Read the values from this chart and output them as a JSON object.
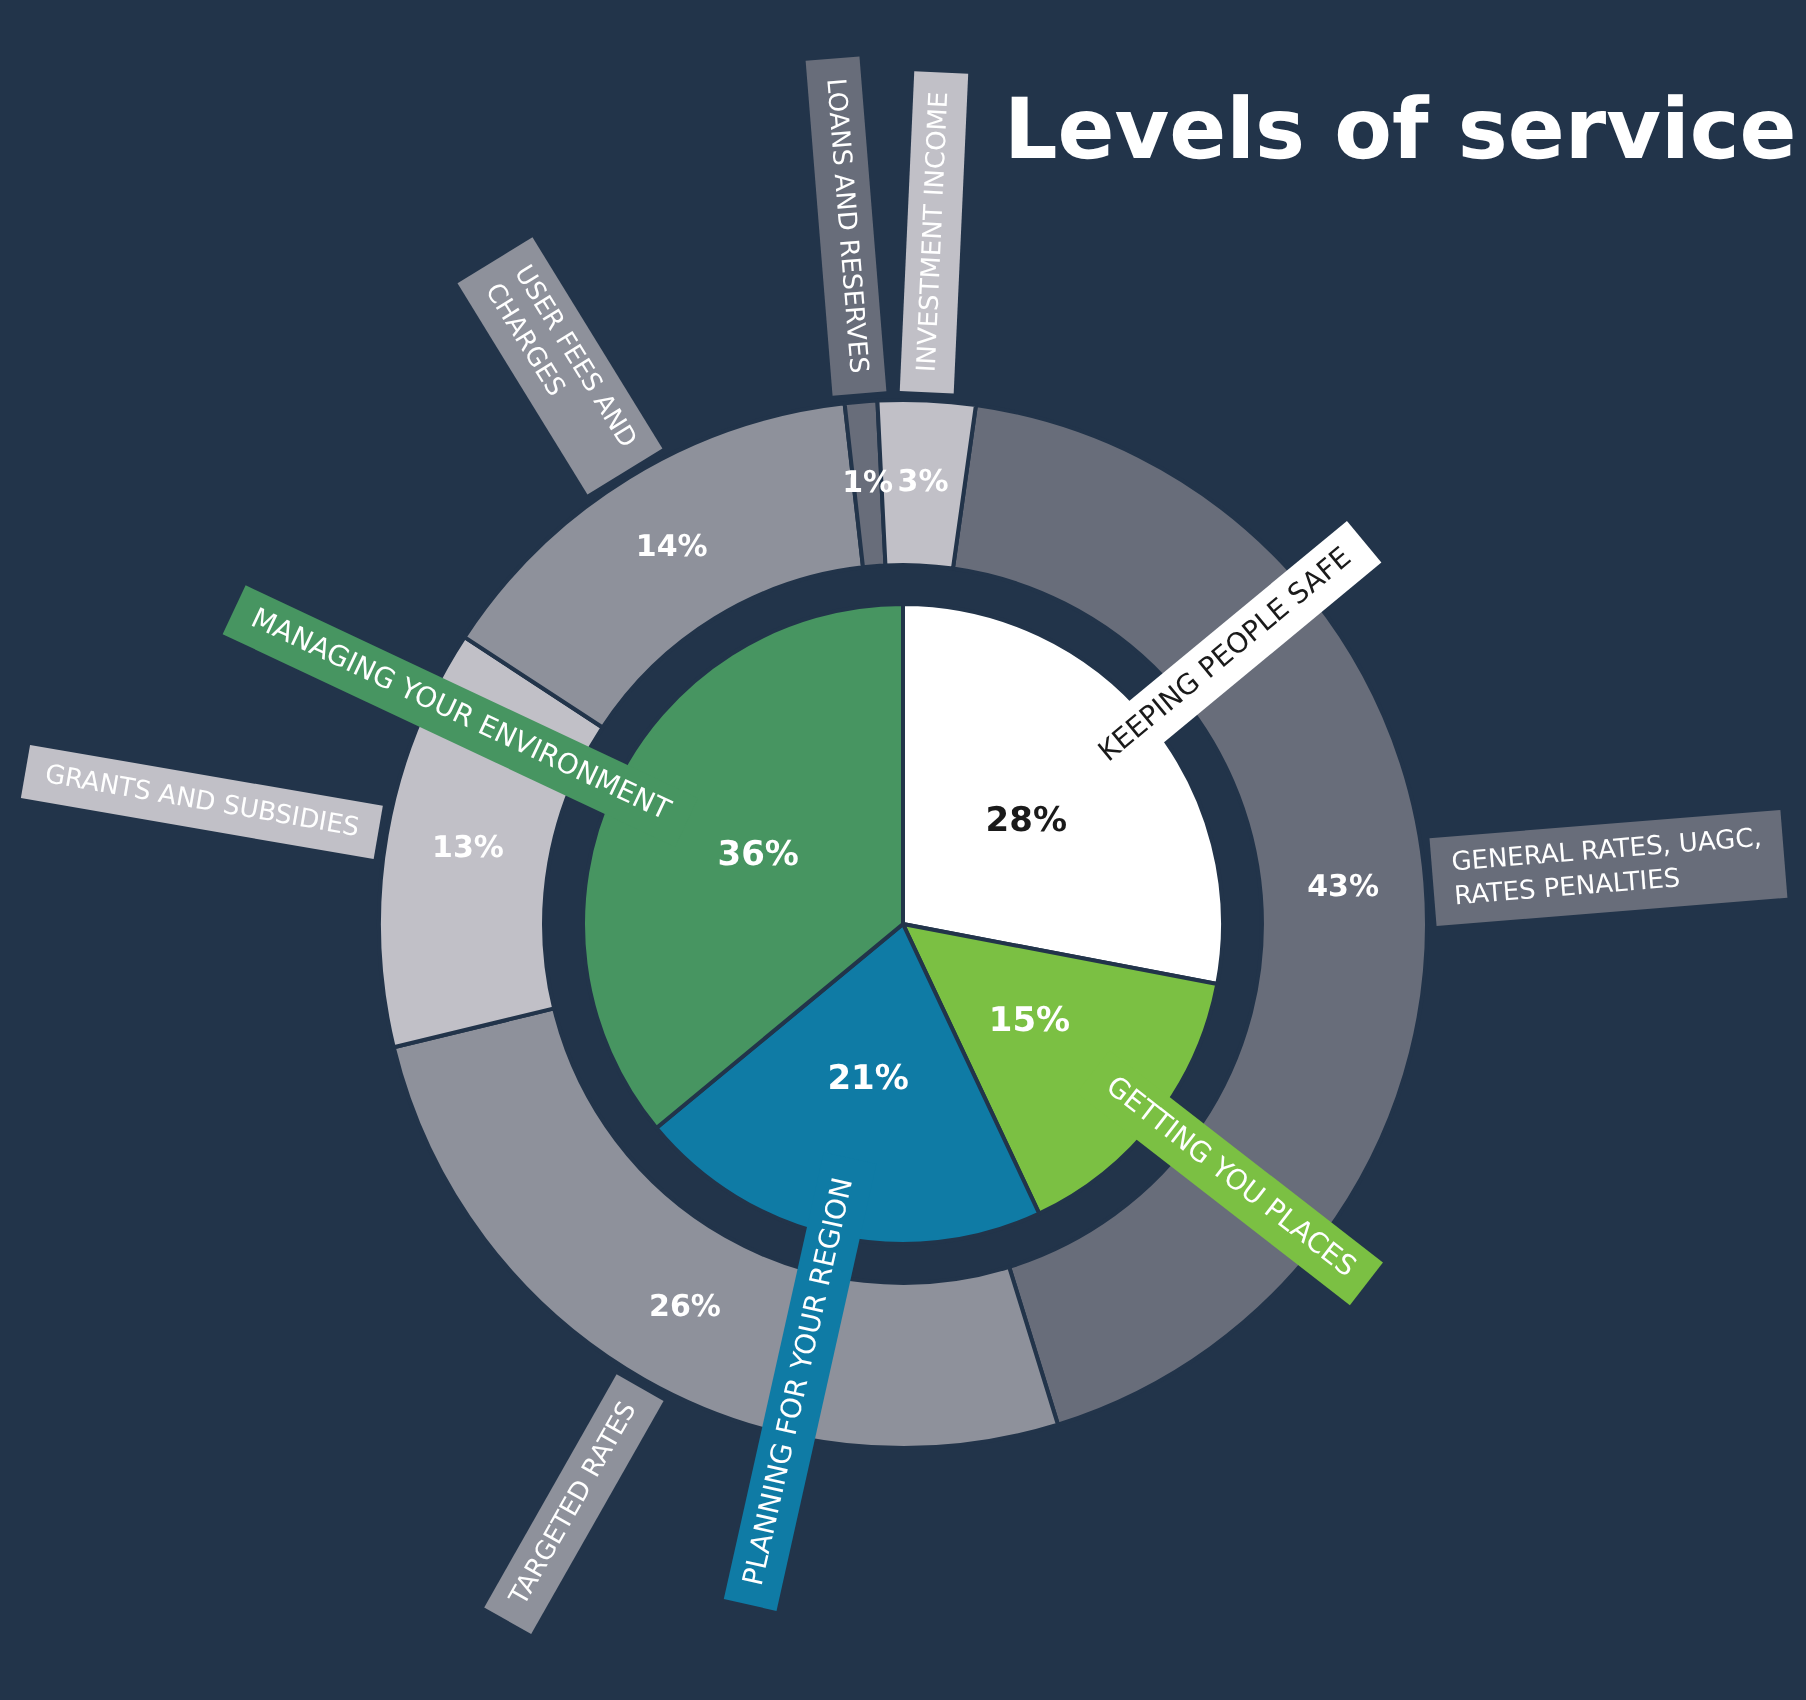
{
  "chart_data": [
    {
      "type": "pie",
      "title": "Levels of service",
      "categories": [
        "KEEPING PEOPLE SAFE",
        "GETTING YOU PLACES",
        "PLANNING FOR YOUR REGION",
        "MANAGING YOUR ENVIRONMENT"
      ],
      "values": [
        28,
        15,
        21,
        36
      ],
      "colors": [
        "#ffffff",
        "#7bc043",
        "#0f7ba5",
        "#479561"
      ],
      "value_labels": [
        "28%",
        "15%",
        "21%",
        "36%"
      ]
    },
    {
      "type": "donut",
      "categories": [
        "GENERAL RATES, UAGC, RATES PENALTIES",
        "TARGETED RATES",
        "GRANTS AND SUBSIDIES",
        "USER FEES AND CHARGES",
        "LOANS AND RESERVES",
        "INVESTMENT INCOME"
      ],
      "values": [
        43,
        26,
        13,
        14,
        1,
        3
      ],
      "colors": [
        "#686d7a",
        "#8e919b",
        "#c1c0c7",
        "#8e919b",
        "#686d7a",
        "#c1c0c7"
      ],
      "value_labels": [
        "43%",
        "26%",
        "13%",
        "14%",
        "1%",
        "3%"
      ]
    }
  ]
}
